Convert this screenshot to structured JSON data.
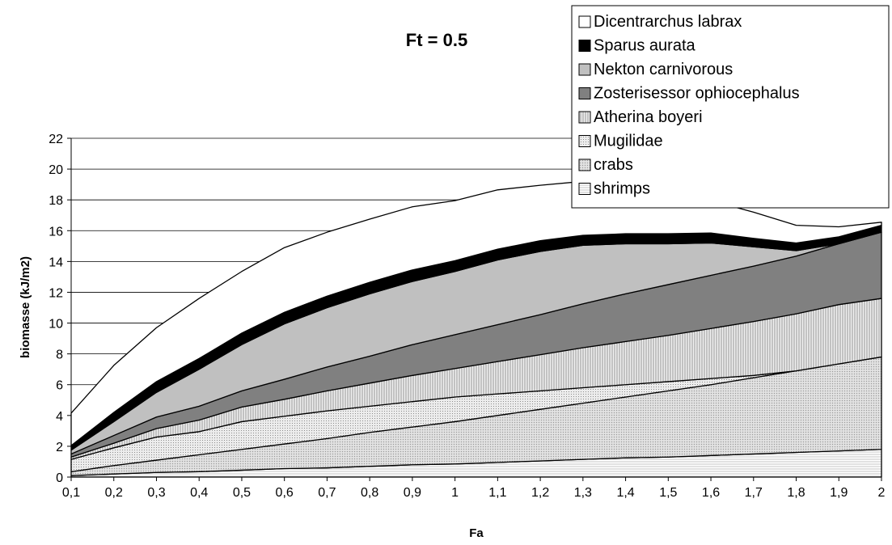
{
  "chart_data": {
    "type": "area",
    "stacked": true,
    "title": "Ft = 0.5",
    "xlabel": "Fa",
    "ylabel": "biomasse (kJ/m2)",
    "ylim": [
      0,
      22
    ],
    "y_ticks": [
      "0",
      "2",
      "4",
      "6",
      "8",
      "10",
      "12",
      "14",
      "16",
      "18",
      "20",
      "22"
    ],
    "grid": "horizontal",
    "legend_position": "top-right",
    "categories": [
      "0,1",
      "0,2",
      "0,3",
      "0,4",
      "0,5",
      "0,6",
      "0,7",
      "0,8",
      "0,9",
      "1",
      "1,1",
      "1,2",
      "1,3",
      "1,4",
      "1,5",
      "1,6",
      "1,7",
      "1,8",
      "1,9",
      "2"
    ],
    "series": [
      {
        "name": "shrimps",
        "pattern": "hlines",
        "values": [
          0.1,
          0.2,
          0.3,
          0.35,
          0.45,
          0.55,
          0.6,
          0.7,
          0.8,
          0.85,
          0.95,
          1.05,
          1.15,
          1.25,
          1.3,
          1.4,
          1.5,
          1.6,
          1.7,
          1.8
        ]
      },
      {
        "name": "crabs",
        "pattern": "dots",
        "values": [
          0.25,
          0.55,
          0.8,
          1.1,
          1.35,
          1.6,
          1.9,
          2.2,
          2.45,
          2.75,
          3.05,
          3.35,
          3.65,
          3.95,
          4.3,
          4.6,
          4.95,
          5.3,
          5.65,
          6.0
        ]
      },
      {
        "name": "Mugilidae",
        "pattern": "fine",
        "values": [
          0.8,
          1.15,
          1.5,
          1.5,
          1.8,
          1.8,
          1.8,
          1.7,
          1.65,
          1.6,
          1.4,
          1.2,
          1.0,
          0.8,
          0.6,
          0.4,
          0.15,
          0.0,
          0.0,
          0.0
        ]
      },
      {
        "name": "Atherina boyeri",
        "pattern": "vlines",
        "values": [
          0.15,
          0.3,
          0.55,
          0.75,
          0.95,
          1.1,
          1.3,
          1.5,
          1.7,
          1.85,
          2.1,
          2.35,
          2.6,
          2.8,
          3.0,
          3.25,
          3.5,
          3.7,
          3.85,
          3.8
        ]
      },
      {
        "name": "Zosterisessor ophiocephalus",
        "pattern": "dark",
        "values": [
          0.2,
          0.5,
          0.75,
          0.9,
          1.05,
          1.3,
          1.55,
          1.75,
          2.0,
          2.2,
          2.4,
          2.6,
          2.85,
          3.1,
          3.3,
          3.45,
          3.6,
          3.75,
          3.95,
          4.3
        ]
      },
      {
        "name": "Nekton carnivorous",
        "pattern": "light",
        "values": [
          0.25,
          0.9,
          1.6,
          2.4,
          3.0,
          3.6,
          3.85,
          4.05,
          4.1,
          4.1,
          4.2,
          4.1,
          3.8,
          3.25,
          2.65,
          2.1,
          1.25,
          0.35,
          0.0,
          0.0
        ]
      },
      {
        "name": "Sparus aurata",
        "pattern": "black",
        "values": [
          0.3,
          0.6,
          0.7,
          0.7,
          0.75,
          0.75,
          0.75,
          0.75,
          0.75,
          0.7,
          0.7,
          0.7,
          0.65,
          0.65,
          0.65,
          0.65,
          0.55,
          0.5,
          0.45,
          0.45
        ]
      },
      {
        "name": "Dicentrarchus labrax",
        "pattern": "white",
        "values": [
          2.1,
          3.05,
          3.5,
          3.9,
          4.0,
          4.2,
          4.15,
          4.1,
          4.1,
          3.9,
          3.85,
          3.6,
          3.5,
          3.0,
          2.6,
          2.1,
          1.7,
          1.15,
          0.65,
          0.2
        ]
      }
    ]
  }
}
